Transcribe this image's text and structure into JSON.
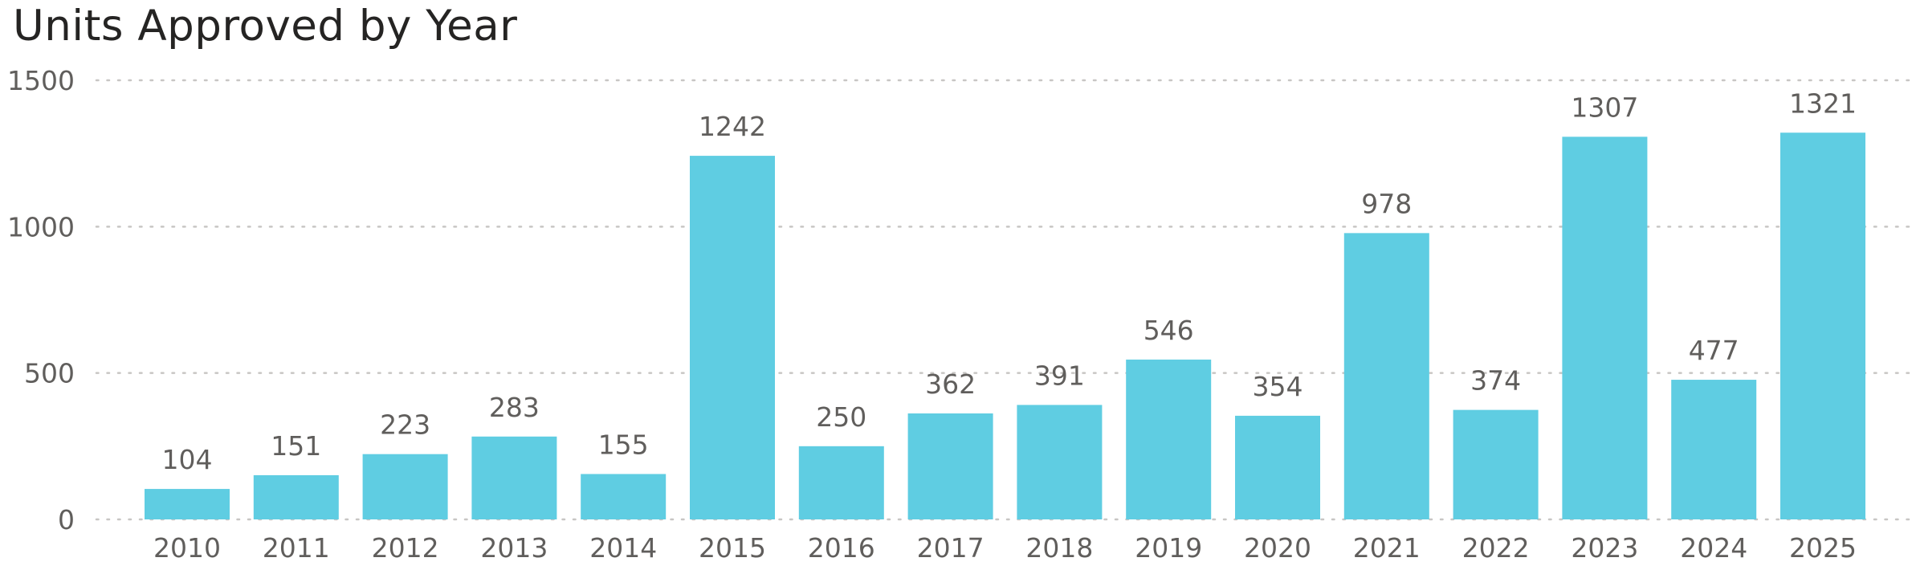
{
  "chart_data": {
    "type": "bar",
    "title": "Units Approved by Year",
    "xlabel": "",
    "ylabel": "",
    "categories": [
      "2010",
      "2011",
      "2012",
      "2013",
      "2014",
      "2015",
      "2016",
      "2017",
      "2018",
      "2019",
      "2020",
      "2021",
      "2022",
      "2023",
      "2024",
      "2025"
    ],
    "values": [
      104,
      151,
      223,
      283,
      155,
      1242,
      250,
      362,
      391,
      546,
      354,
      978,
      374,
      1307,
      477,
      1321
    ],
    "ylim": [
      0,
      1500
    ],
    "yticks": [
      0,
      500,
      1000,
      1500
    ],
    "grid": true,
    "grid_style": "dotted",
    "data_labels": true,
    "bar_color": "#5fcde2",
    "text_color": "#605e5c",
    "title_color": "#252423",
    "grid_color": "#c8c6c4"
  }
}
